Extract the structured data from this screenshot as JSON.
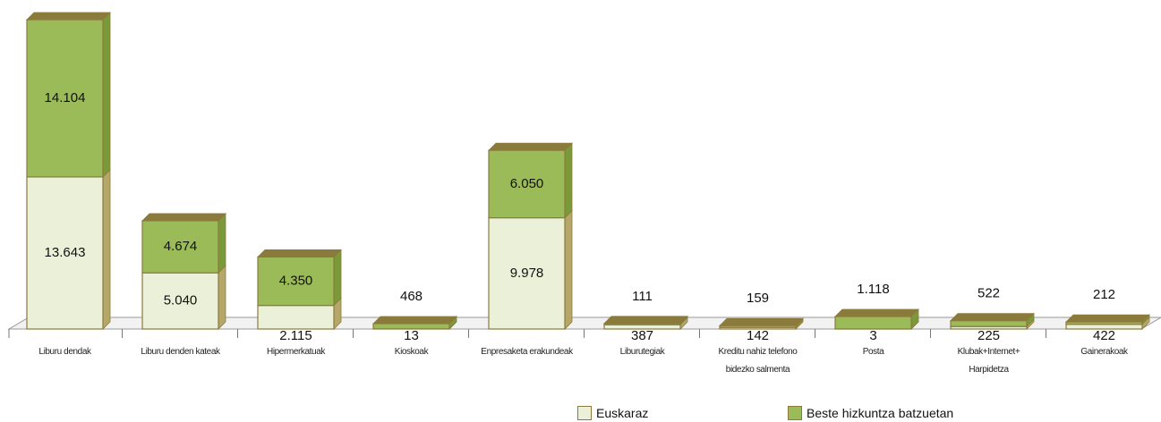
{
  "chart_data": {
    "type": "bar",
    "stacked": true,
    "categories": [
      "Liburu dendak",
      "Liburu denden kateak",
      "Hipermerkatuak",
      "Kioskoak",
      "Enpresaketa erakundeak",
      "Liburutegiak",
      "Kreditu nahiz telefono bidezko salmenta",
      "Posta",
      "Klubak+Internet+ Harpidetza",
      "Gainerakoak"
    ],
    "series": [
      {
        "name": "Euskaraz",
        "color": "#ebf0d8",
        "values": [
          13643,
          5040,
          2115,
          13,
          9978,
          387,
          142,
          3,
          225,
          422
        ],
        "value_labels": [
          "13.643",
          "5.040",
          "2.115",
          "13",
          "9.978",
          "387",
          "142",
          "3",
          "225",
          "422"
        ]
      },
      {
        "name": "Beste hizkuntza batzuetan",
        "color": "#9bbb59",
        "values": [
          14104,
          4674,
          4350,
          468,
          6050,
          111,
          159,
          1118,
          522,
          212
        ],
        "value_labels": [
          "14.104",
          "4.674",
          "4.350",
          "468",
          "6.050",
          "111",
          "159",
          "1.118",
          "522",
          "212"
        ]
      }
    ],
    "legend": "bottom"
  }
}
